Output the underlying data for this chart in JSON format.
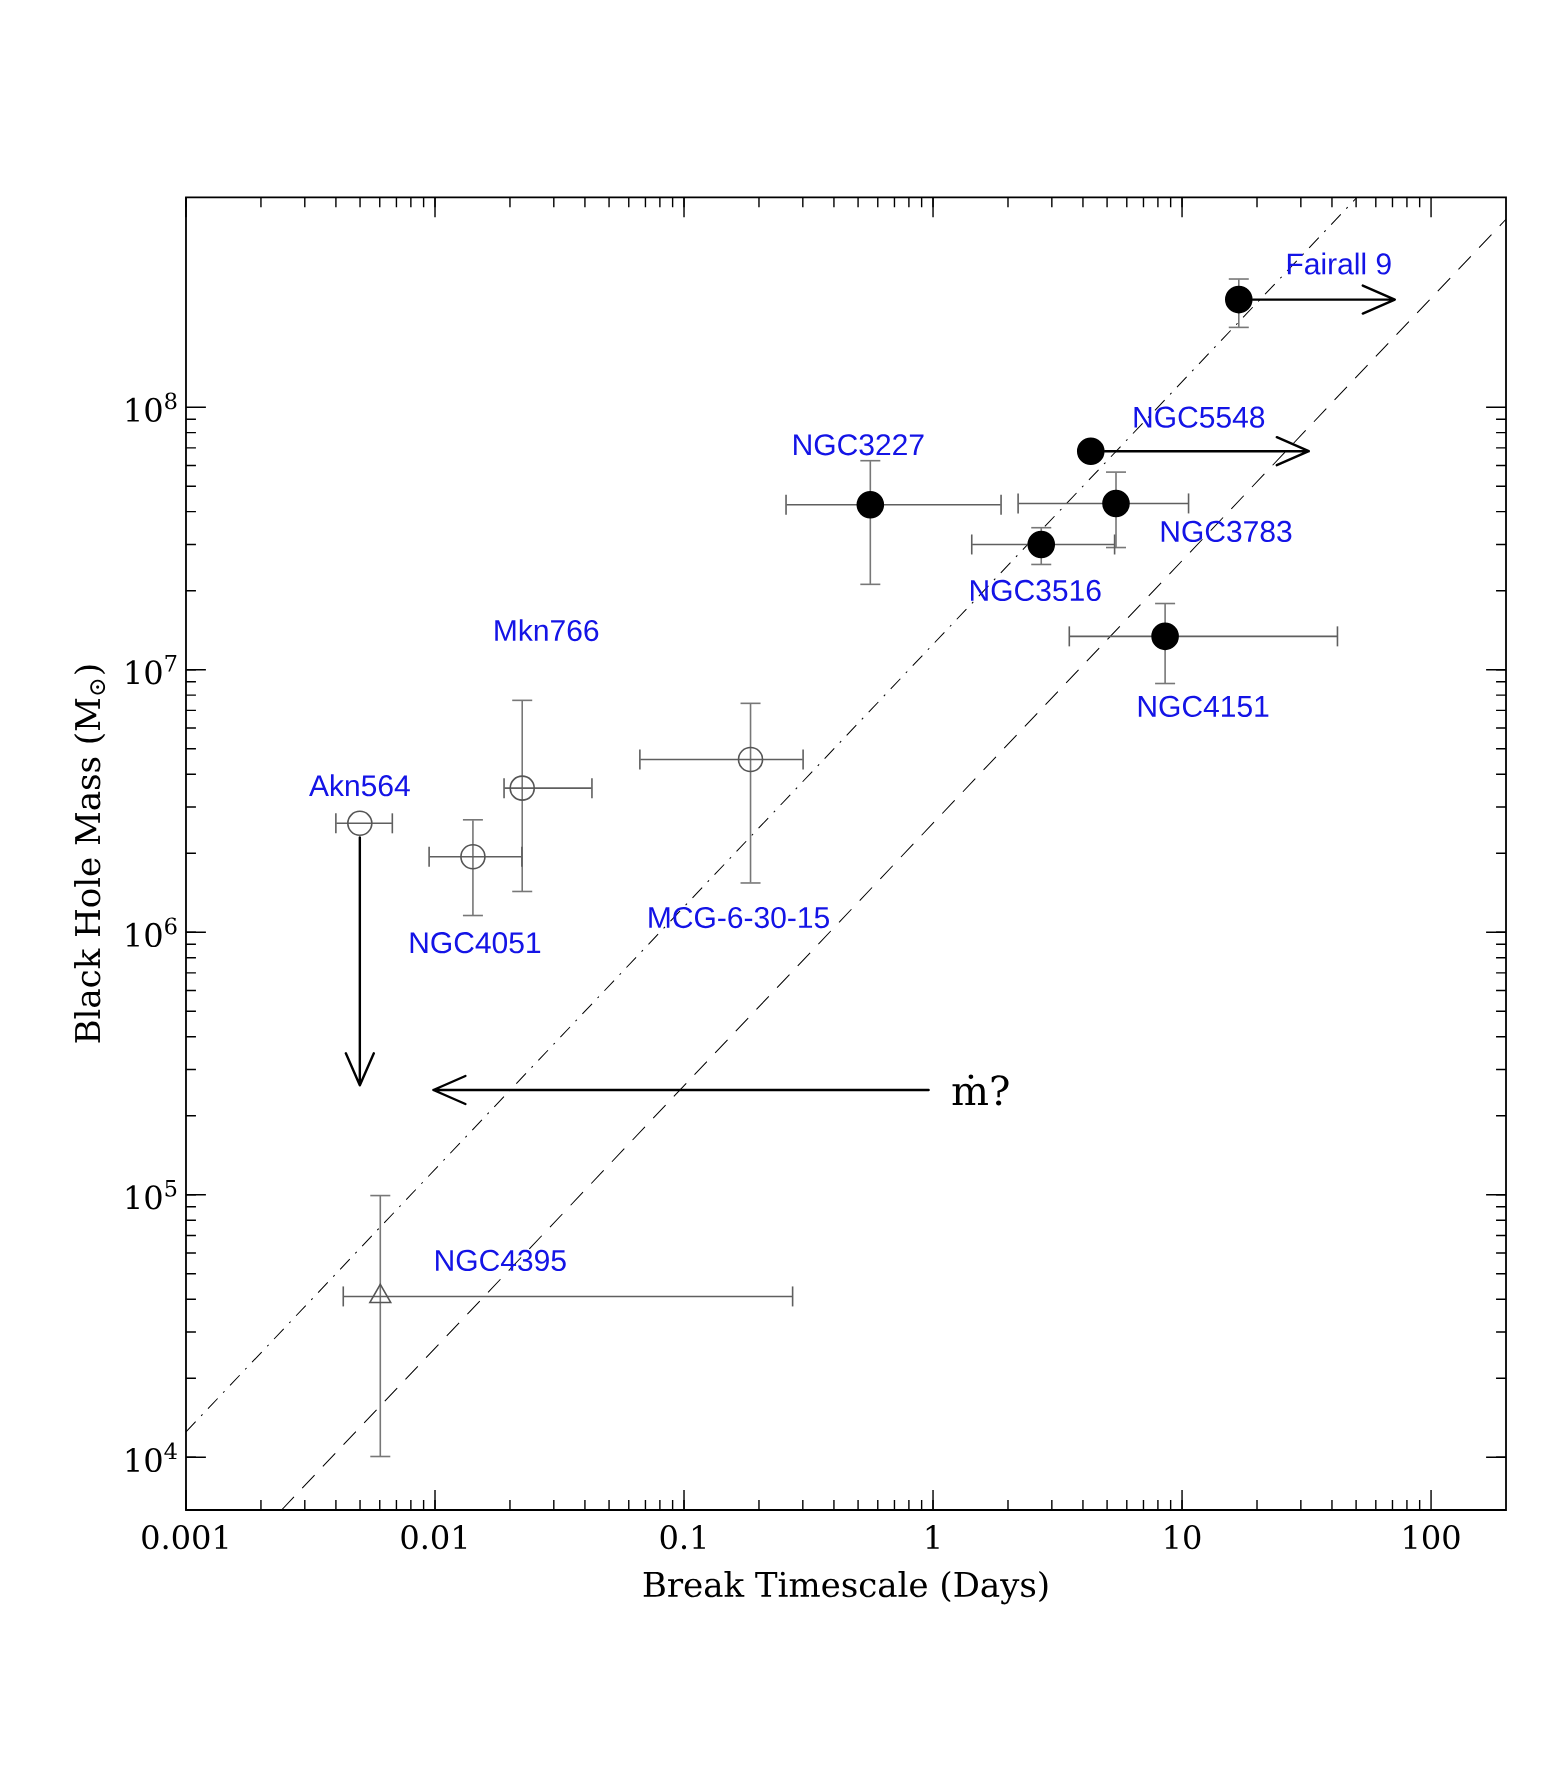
{
  "chart_data": {
    "type": "scatter",
    "xlabel": "Break Timescale (Days)",
    "ylabel": "Black Hole Mass (M$_{⊙}$)",
    "log": "xy",
    "xlim": [
      0.001,
      200
    ],
    "ylim": [
      6300,
      630000000
    ],
    "xticks": [
      0.001,
      0.01,
      0.1,
      1,
      10,
      100
    ],
    "yticks": [
      {
        "value": 10000,
        "label": "10$^{4}$"
      },
      {
        "value": 100000,
        "label": "10$^{5}$"
      },
      {
        "value": 1000000,
        "label": "10$^{6}$"
      },
      {
        "value": 10000000,
        "label": "10$^{7}$"
      },
      {
        "value": 100000000,
        "label": "10$^{8}$"
      }
    ],
    "series": [
      {
        "type": "line",
        "color": "#000000",
        "line_style": "dashdot",
        "x": [
          0.001,
          50
        ],
        "values": [
          12500,
          625000000
        ]
      },
      {
        "type": "line",
        "color": "#000000",
        "line_style": "dashed",
        "x": [
          0.00242,
          200
        ],
        "values": [
          6300,
          520000000
        ]
      },
      {
        "type": "scatter",
        "marker": "circle",
        "color": "#000000",
        "x": [
          16.9,
          4.3,
          0.56,
          5.43,
          2.72,
          8.55
        ],
        "values": [
          257000000,
          68000000,
          42500000,
          43000000,
          30000000,
          13400000
        ],
        "errors": [
          [
            200000000,
            310000000
          ],
          null,
          [
            21000000,
            63000000
          ],
          [
            29000000,
            57000000
          ],
          [
            25000000,
            35000000
          ],
          [
            8800000,
            18000000
          ]
        ],
        "xerrors": [
          null,
          null,
          [
            0.255,
            1.89
          ],
          [
            2.18,
            10.7
          ],
          [
            1.42,
            5.4
          ],
          [
            3.5,
            42.4
          ]
        ]
      },
      {
        "type": "scatter",
        "marker": "circle",
        "color": "#555555",
        "x": [
          0.00499,
          0.0142,
          0.0224,
          0.185
        ],
        "values": [
          2600000,
          1940000,
          3540000,
          4550000
        ],
        "errors": [
          null,
          [
            1150000,
            2700000
          ],
          [
            1420000,
            7700000
          ],
          [
            1530000,
            7500000
          ]
        ],
        "xerrors": [
          [
            0.00397,
            0.00679
          ],
          [
            0.0094,
            0.0225
          ],
          [
            0.0188,
            0.043
          ],
          [
            0.066,
            0.303
          ]
        ]
      },
      {
        "type": "scatter",
        "marker": "triangle",
        "color": "#555555",
        "x": [
          0.00603
        ],
        "values": [
          41000
        ],
        "errors": [
          [
            10000,
            100000
          ]
        ],
        "xerrors": [
          [
            0.00425,
            0.275
          ]
        ]
      }
    ],
    "annotations": [
      "Fairall 9",
      "NGC5548",
      "NGC3227",
      "NGC3783",
      "NGC3516",
      "NGC4151",
      "Akn564",
      "NGC4051",
      "Mkn766",
      "MCG-6-30-15",
      "NGC4395",
      "ṁ?"
    ]
  }
}
